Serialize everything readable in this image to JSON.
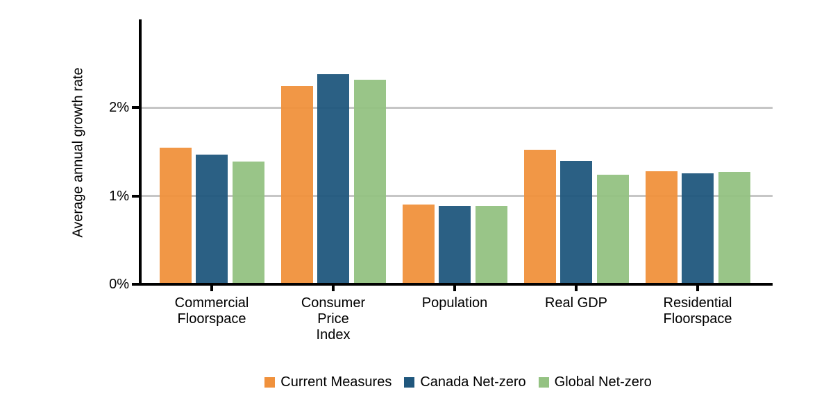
{
  "chart_data": {
    "type": "bar",
    "title": "",
    "ylabel": "Average annual growth rate",
    "xlabel": "",
    "ylim": [
      0,
      3
    ],
    "yticks": [
      {
        "value": 0,
        "label": "0%"
      },
      {
        "value": 1,
        "label": "1%"
      },
      {
        "value": 2,
        "label": "2%"
      }
    ],
    "gridline_values": [
      1,
      2
    ],
    "grid": "horizontal-major-only",
    "legend_position": "bottom-center",
    "categories": [
      "Commercial Floorspace",
      "Consumer Price Index",
      "Population",
      "Real GDP",
      "Residential Floorspace"
    ],
    "category_label_lines": [
      [
        "Commercial",
        "Floorspace"
      ],
      [
        "Consumer",
        "Price",
        "Index"
      ],
      [
        "Population"
      ],
      [
        "Real GDP"
      ],
      [
        "Residential",
        "Floorspace"
      ]
    ],
    "series": [
      {
        "name": "Current Measures",
        "color": "#F0913C",
        "values": [
          1.55,
          2.25,
          0.9,
          1.52,
          1.28
        ]
      },
      {
        "name": "Canada Net-zero",
        "color": "#20577D",
        "values": [
          1.47,
          2.38,
          0.89,
          1.4,
          1.26
        ]
      },
      {
        "name": "Global Net-zero",
        "color": "#94C282",
        "values": [
          1.39,
          2.32,
          0.89,
          1.24,
          1.27
        ]
      }
    ]
  },
  "style": {
    "axis_color": "#000000",
    "gridline_color": "#C6C6C6",
    "text_color": "#000000",
    "background": "#FFFFFF"
  }
}
